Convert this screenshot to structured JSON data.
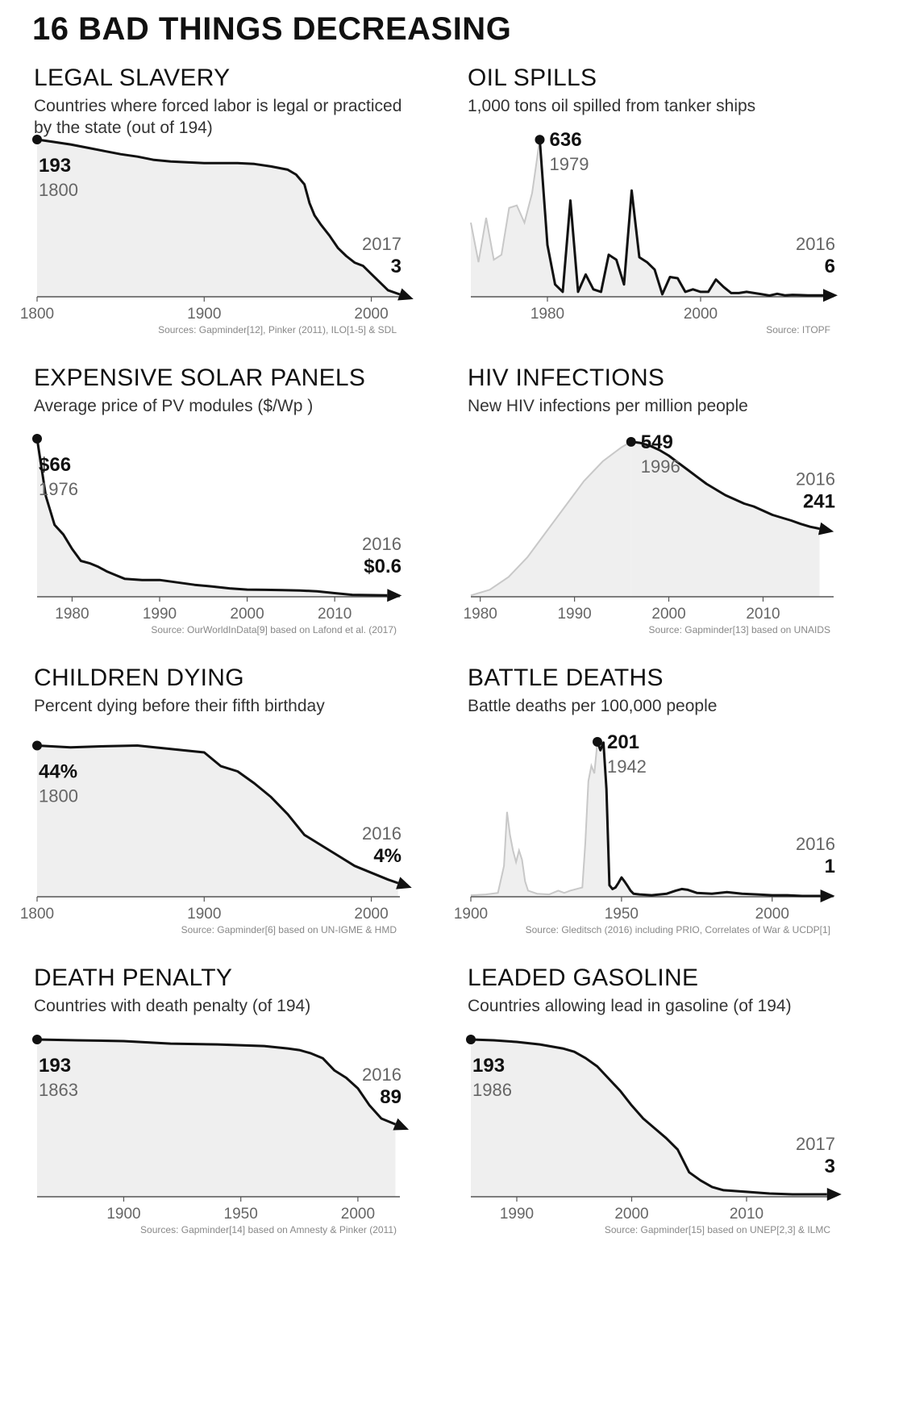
{
  "title": "16 BAD THINGS DECREASING",
  "colors": {
    "line": "#111111",
    "fill": "#efefef",
    "ghost": "#c8c8c8",
    "axis": "#555555"
  },
  "chart_data": [
    {
      "type": "area",
      "title": "LEGAL SLAVERY",
      "subtitle": "Countries where forced labor is legal or practiced by the state (out of 194)",
      "xlim": [
        1800,
        2020
      ],
      "ylim": [
        0,
        194
      ],
      "ticks": [
        1800,
        1900,
        2000
      ],
      "source": "Sources: Gapminder[12], Pinker (2011), ILO[1-5] & SDL",
      "x": [
        1800,
        1810,
        1820,
        1830,
        1840,
        1850,
        1860,
        1870,
        1880,
        1890,
        1900,
        1910,
        1920,
        1930,
        1940,
        1950,
        1955,
        1960,
        1963,
        1966,
        1970,
        1975,
        1980,
        1985,
        1990,
        1995,
        2000,
        2005,
        2010,
        2017
      ],
      "y": [
        193,
        190,
        187,
        183,
        179,
        175,
        172,
        168,
        166,
        165,
        164,
        164,
        164,
        163,
        160,
        156,
        150,
        138,
        115,
        100,
        88,
        75,
        60,
        50,
        42,
        38,
        28,
        18,
        8,
        3
      ],
      "start": {
        "value": "193",
        "year": "1800"
      },
      "end": {
        "value": "3",
        "year": "2017"
      }
    },
    {
      "type": "area",
      "title": "OIL SPILLS",
      "subtitle": "1,000 tons oil spilled from tanker ships",
      "xlim": [
        1970,
        2018
      ],
      "ylim": [
        0,
        640
      ],
      "ticks": [
        1980,
        2000
      ],
      "source": "Source: ITOPF",
      "ghost_x": [
        1970,
        1971,
        1972,
        1973,
        1974,
        1975,
        1976,
        1977,
        1978,
        1979
      ],
      "ghost_y": [
        300,
        140,
        320,
        150,
        170,
        360,
        370,
        300,
        420,
        636
      ],
      "x": [
        1979,
        1980,
        1981,
        1982,
        1983,
        1984,
        1985,
        1986,
        1987,
        1988,
        1989,
        1990,
        1991,
        1992,
        1993,
        1994,
        1995,
        1996,
        1997,
        1998,
        1999,
        2000,
        2001,
        2002,
        2003,
        2004,
        2005,
        2006,
        2007,
        2008,
        2009,
        2010,
        2011,
        2012,
        2013,
        2014,
        2015,
        2016
      ],
      "y": [
        636,
        210,
        50,
        20,
        390,
        20,
        90,
        30,
        20,
        170,
        150,
        50,
        430,
        160,
        140,
        110,
        10,
        80,
        75,
        20,
        30,
        20,
        20,
        70,
        40,
        15,
        15,
        20,
        15,
        10,
        5,
        12,
        6,
        8,
        7,
        6,
        6,
        6
      ],
      "start": {
        "value": "636",
        "year": "1979"
      },
      "end": {
        "value": "6",
        "year": "2016"
      }
    },
    {
      "type": "area",
      "title": "EXPENSIVE SOLAR PANELS",
      "subtitle": "Average price of PV modules ($/Wp )",
      "xlim": [
        1976,
        2018
      ],
      "ylim": [
        0,
        66
      ],
      "ticks": [
        1980,
        1990,
        2000,
        2010
      ],
      "source": "Source: OurWorldInData[9] based on Lafond et al. (2017)",
      "x": [
        1976,
        1977,
        1978,
        1979,
        1980,
        1981,
        1982,
        1983,
        1984,
        1985,
        1986,
        1988,
        1990,
        1992,
        1994,
        1996,
        1998,
        2000,
        2002,
        2004,
        2006,
        2008,
        2010,
        2012,
        2016
      ],
      "y": [
        66,
        42,
        30,
        26,
        20,
        15,
        14,
        12.5,
        10.5,
        9,
        7.5,
        7,
        7,
        6,
        5,
        4.3,
        3.5,
        3,
        2.9,
        2.8,
        2.6,
        2.3,
        1.5,
        0.8,
        0.6
      ],
      "start": {
        "value": "$66",
        "year": "1976"
      },
      "end": {
        "value": "$0.6",
        "year": "2016"
      }
    },
    {
      "type": "area",
      "title": "HIV INFECTIONS",
      "subtitle": "New HIV infections per million people",
      "xlim": [
        1979,
        2018
      ],
      "ylim": [
        0,
        560
      ],
      "ticks": [
        1980,
        1990,
        2000,
        2010
      ],
      "source": "Source: Gapminder[13] based on UNAIDS",
      "ghost_x": [
        1979,
        1981,
        1983,
        1985,
        1987,
        1989,
        1991,
        1993,
        1995,
        1996
      ],
      "ghost_y": [
        5,
        25,
        70,
        140,
        230,
        320,
        410,
        480,
        530,
        549
      ],
      "x": [
        1996,
        1997,
        1998,
        1999,
        2000,
        2001,
        2002,
        2003,
        2004,
        2005,
        2006,
        2007,
        2008,
        2009,
        2010,
        2011,
        2012,
        2013,
        2014,
        2015,
        2016
      ],
      "y": [
        549,
        545,
        535,
        520,
        500,
        475,
        450,
        425,
        400,
        380,
        360,
        345,
        330,
        320,
        305,
        290,
        280,
        270,
        258,
        248,
        241
      ],
      "start": {
        "value": "549",
        "year": "1996"
      },
      "end": {
        "value": "241",
        "year": "2016"
      }
    },
    {
      "type": "area",
      "title": "CHILDREN DYING",
      "subtitle": "Percent dying before their fifth birthday",
      "xlim": [
        1800,
        2020
      ],
      "ylim": [
        0,
        46
      ],
      "ticks": [
        1800,
        1900,
        2000
      ],
      "source": "Source: Gapminder[6] based on UN-IGME & HMD",
      "x": [
        1800,
        1820,
        1840,
        1860,
        1880,
        1900,
        1910,
        1920,
        1930,
        1940,
        1950,
        1960,
        1970,
        1980,
        1990,
        2000,
        2010,
        2016
      ],
      "y": [
        44,
        43.5,
        43.8,
        44,
        43,
        42,
        38,
        36.5,
        33,
        29,
        24,
        18,
        15,
        12,
        9,
        7,
        5,
        4
      ],
      "start": {
        "value": "44%",
        "year": "1800"
      },
      "end": {
        "value": "4%",
        "year": "2016"
      }
    },
    {
      "type": "area",
      "title": "BATTLE DEATHS",
      "subtitle": "Battle deaths per 100,000 people",
      "xlim": [
        1900,
        2022
      ],
      "ylim": [
        0,
        205
      ],
      "ticks": [
        1900,
        1950,
        2000
      ],
      "source": "Source: Gleditsch (2016) including PRIO, Correlates of War & UCDP[1]",
      "ghost_x": [
        1900,
        1905,
        1909,
        1911,
        1912,
        1913,
        1914,
        1915,
        1916,
        1917,
        1918,
        1919,
        1922,
        1926,
        1929,
        1931,
        1933,
        1937,
        1938,
        1939,
        1940,
        1941,
        1942
      ],
      "ghost_y": [
        2,
        3,
        5,
        40,
        110,
        80,
        60,
        45,
        60,
        48,
        20,
        8,
        4,
        3,
        8,
        5,
        8,
        12,
        70,
        150,
        170,
        160,
        201
      ],
      "x": [
        1942,
        1943,
        1944,
        1945,
        1946,
        1947,
        1948,
        1949,
        1950,
        1951,
        1952,
        1953,
        1954,
        1956,
        1960,
        1965,
        1968,
        1970,
        1972,
        1975,
        1980,
        1985,
        1990,
        1995,
        2000,
        2005,
        2010,
        2016
      ],
      "y": [
        201,
        190,
        200,
        140,
        15,
        10,
        12,
        18,
        25,
        20,
        14,
        8,
        4,
        3,
        2,
        4,
        8,
        10,
        9,
        5,
        4,
        6,
        4,
        3,
        2,
        2,
        1,
        1
      ],
      "start": {
        "value": "201",
        "year": "1942"
      },
      "end": {
        "value": "1",
        "year": "2016"
      }
    },
    {
      "type": "area",
      "title": "DEATH PENALTY",
      "subtitle": "Countries with death penalty (of 194)",
      "xlim": [
        1863,
        2020
      ],
      "ylim": [
        0,
        194
      ],
      "ticks": [
        1900,
        1950,
        2000
      ],
      "source": "Sources: Gapminder[14] based on Amnesty & Pinker (2011)",
      "x": [
        1863,
        1880,
        1900,
        1920,
        1940,
        1950,
        1960,
        1970,
        1975,
        1980,
        1985,
        1990,
        1995,
        2000,
        2005,
        2010,
        2016
      ],
      "y": [
        193,
        192,
        191,
        188,
        187,
        186,
        185,
        182,
        180,
        176,
        170,
        155,
        146,
        133,
        112,
        96,
        89
      ],
      "start": {
        "value": "193",
        "year": "1863"
      },
      "end": {
        "value": "89",
        "year": "2016"
      }
    },
    {
      "type": "area",
      "title": "LEADED GASOLINE",
      "subtitle": "Countries allowing lead in gasoline (of 194)",
      "xlim": [
        1986,
        2018
      ],
      "ylim": [
        0,
        194
      ],
      "ticks": [
        1990,
        2000,
        2010
      ],
      "source": "Source: Gapminder[15] based on UNEP[2,3] & ILMC",
      "x": [
        1986,
        1988,
        1990,
        1992,
        1994,
        1995,
        1996,
        1997,
        1998,
        1999,
        2000,
        2001,
        2002,
        2003,
        2004,
        2005,
        2006,
        2007,
        2008,
        2010,
        2012,
        2014,
        2017
      ],
      "y": [
        193,
        192,
        190,
        187,
        182,
        178,
        170,
        160,
        145,
        130,
        112,
        96,
        84,
        72,
        58,
        30,
        20,
        12,
        8,
        6,
        4,
        3,
        3
      ],
      "start": {
        "value": "193",
        "year": "1986"
      },
      "end": {
        "value": "3",
        "year": "2017"
      }
    }
  ]
}
